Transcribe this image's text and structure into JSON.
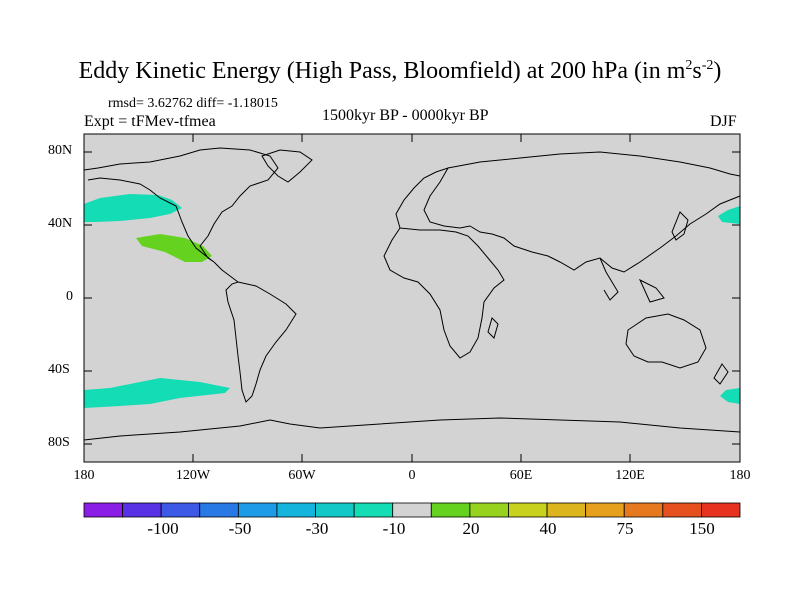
{
  "title": {
    "main": "Eddy Kinetic Energy (High Pass, Bloomfield) at 200 hPa (in m",
    "sup1": "2",
    "mid": "s",
    "sup2": "-2",
    "end": ")"
  },
  "stats": "rmsd= 3.62762 diff= -1.18015",
  "experiment": "Expt = tFMev-tfmea",
  "period": "1500kyr BP - 0000kyr BP",
  "season": "DJF",
  "y_axis": {
    "labels": [
      "80N",
      "40N",
      "0",
      "40S",
      "80S"
    ]
  },
  "x_axis": {
    "labels": [
      "180",
      "120W",
      "60W",
      "0",
      "60E",
      "120E",
      "180"
    ]
  },
  "map": {
    "ocean_color": "#d3d3d3",
    "coast_color": "#000000"
  },
  "colorbar": {
    "colors": [
      "#8a1ee6",
      "#5a32e6",
      "#3c5ae6",
      "#2878e6",
      "#1e9be6",
      "#14b4dc",
      "#14c8c8",
      "#14dcb4",
      "#d3d3d3",
      "#64d21e",
      "#96d21e",
      "#c8d21e",
      "#dcb41e",
      "#e6a01e",
      "#e6781e",
      "#e6501e",
      "#e6321e"
    ],
    "labels": [
      "-100",
      "-50",
      "-30",
      "-10",
      "20",
      "40",
      "75",
      "150"
    ],
    "label_boundaries": [
      2,
      4,
      6,
      8,
      10,
      12,
      14,
      16
    ]
  },
  "anomaly_colors": {
    "negative": "#14dcb4",
    "positive": "#64d21e"
  }
}
